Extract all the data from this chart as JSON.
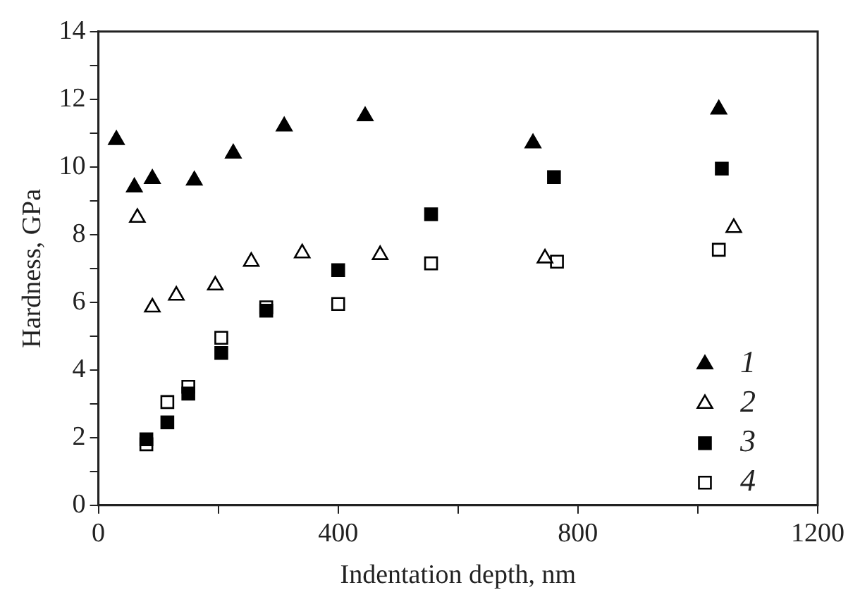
{
  "chart_data": {
    "type": "scatter",
    "xlabel": "Indentation depth, nm",
    "ylabel": "Hardness, GPa",
    "xlim": [
      0,
      1200
    ],
    "xticks": [
      0,
      {
        "value": 200,
        "label": null
      },
      400,
      {
        "value": 600,
        "label": null
      },
      800,
      {
        "value": 1000,
        "label": null
      },
      1200
    ],
    "ylim": [
      0,
      14
    ],
    "yticks": [
      0,
      {
        "value": 1,
        "label": null
      },
      2,
      {
        "value": 3,
        "label": null
      },
      4,
      {
        "value": 5,
        "label": null
      },
      6,
      {
        "value": 7,
        "label": null
      },
      8,
      {
        "value": 9,
        "label": null
      },
      10,
      {
        "value": 11,
        "label": null
      },
      12,
      {
        "value": 13,
        "label": null
      },
      14
    ],
    "grid": false,
    "legend": "bottom right",
    "series": [
      {
        "name": "1",
        "color": "#000000",
        "marker": "triangle",
        "x": [
          30,
          60,
          90,
          160,
          225,
          310,
          445,
          725,
          1035
        ],
        "values": [
          10.8,
          9.4,
          9.65,
          9.6,
          10.4,
          11.2,
          11.5,
          10.7,
          11.7
        ]
      },
      {
        "name": "2",
        "color": "#000000",
        "marker": "triangle-open",
        "x": [
          65,
          90,
          130,
          195,
          255,
          340,
          470,
          745,
          1060
        ],
        "values": [
          8.5,
          5.85,
          6.2,
          6.5,
          7.2,
          7.45,
          7.4,
          7.3,
          8.2
        ]
      },
      {
        "name": "3",
        "color": "#000000",
        "marker": "square",
        "x": [
          80,
          115,
          150,
          205,
          280,
          400,
          555,
          760,
          1040
        ],
        "values": [
          1.95,
          2.45,
          3.3,
          4.5,
          5.75,
          6.95,
          8.6,
          9.7,
          9.95
        ]
      },
      {
        "name": "4",
        "color": "#000000",
        "marker": "square-open",
        "x": [
          80,
          115,
          150,
          205,
          280,
          400,
          555,
          765,
          1035
        ],
        "values": [
          1.8,
          3.05,
          3.5,
          4.95,
          5.85,
          5.95,
          7.15,
          7.2,
          7.55
        ]
      }
    ]
  }
}
